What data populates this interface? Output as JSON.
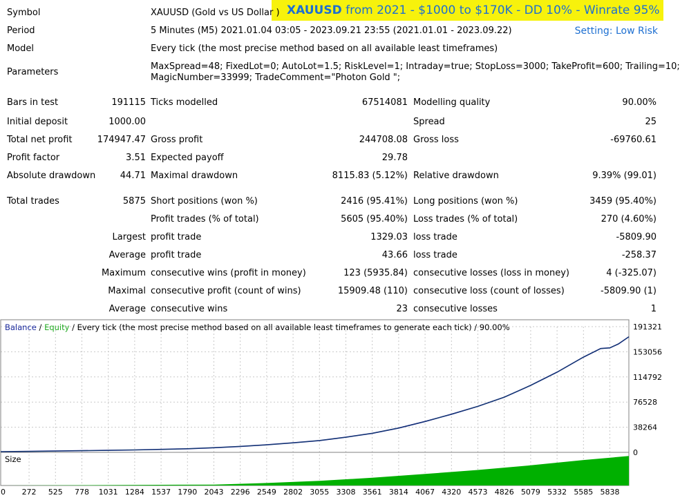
{
  "banner": {
    "symbol": "XAUUSD",
    "rest": " from 2021 - $1000 to $170K - DD 10% - Winrate 95%"
  },
  "setting_note": "Setting: Low Risk",
  "header_rows": {
    "symbol": {
      "label": "Symbol",
      "value": "XAUUSD (Gold vs US Dollar )"
    },
    "period": {
      "label": "Period",
      "value": "5 Minutes (M5) 2021.01.04 03:05 - 2023.09.21 23:55 (2021.01.01 - 2023.09.22)"
    },
    "model": {
      "label": "Model",
      "value": "Every tick (the most precise method based on all available least timeframes)"
    },
    "parameters": {
      "label": "Parameters",
      "line1": "MaxSpread=48; FixedLot=0; AutoLot=1.5; RiskLevel=1; Intraday=true; StopLoss=3000; TakeProfit=600; Trailing=10;",
      "line2": "MagicNumber=33999; TradeComment=\"Photon Gold \";"
    }
  },
  "stats": {
    "bars_in_test": {
      "label": "Bars in test",
      "value": "191115"
    },
    "ticks_modelled": {
      "label": "Ticks modelled",
      "value": "67514081"
    },
    "modelling_quality": {
      "label": "Modelling quality",
      "value": "90.00%"
    },
    "initial_deposit": {
      "label": "Initial deposit",
      "value": "1000.00"
    },
    "spread": {
      "label": "Spread",
      "value": "25"
    },
    "total_net_profit": {
      "label": "Total net profit",
      "value": "174947.47"
    },
    "gross_profit": {
      "label": "Gross profit",
      "value": "244708.08"
    },
    "gross_loss": {
      "label": "Gross loss",
      "value": "-69760.61"
    },
    "profit_factor": {
      "label": "Profit factor",
      "value": "3.51"
    },
    "expected_payoff": {
      "label": "Expected payoff",
      "value": "29.78"
    },
    "absolute_drawdown": {
      "label": "Absolute drawdown",
      "value": "44.71"
    },
    "maximal_drawdown": {
      "label": "Maximal drawdown",
      "value": "8115.83 (5.12%)"
    },
    "relative_drawdown": {
      "label": "Relative drawdown",
      "value": "9.39% (99.01)"
    },
    "total_trades": {
      "label": "Total trades",
      "value": "5875"
    },
    "short_positions": {
      "label": "Short positions (won %)",
      "value": "2416 (95.41%)"
    },
    "long_positions": {
      "label": "Long positions (won %)",
      "value": "3459 (95.40%)"
    },
    "profit_trades": {
      "label": "Profit trades (% of total)",
      "value": "5605 (95.40%)"
    },
    "loss_trades": {
      "label": "Loss trades (% of total)",
      "value": "270 (4.60%)"
    },
    "largest_label": "Largest",
    "largest_profit": {
      "label": "profit trade",
      "value": "1329.03"
    },
    "largest_loss": {
      "label": "loss trade",
      "value": "-5809.90"
    },
    "average_label": "Average",
    "average_profit": {
      "label": "profit trade",
      "value": "43.66"
    },
    "average_loss": {
      "label": "loss trade",
      "value": "-258.37"
    },
    "maximum_label": "Maximum",
    "max_consec_wins": {
      "label": "consecutive wins (profit in money)",
      "value": "123 (5935.84)"
    },
    "max_consec_losses": {
      "label": "consecutive losses (loss in money)",
      "value": "4 (-325.07)"
    },
    "maximal_label": "Maximal",
    "maximal_consec_profit": {
      "label": "consecutive profit (count of wins)",
      "value": "15909.48 (110)"
    },
    "maximal_consec_loss": {
      "label": "consecutive loss (count of losses)",
      "value": "-5809.90 (1)"
    },
    "average2_label": "Average",
    "avg_consec_wins": {
      "label": "consecutive wins",
      "value": "23"
    },
    "avg_consec_losses": {
      "label": "consecutive losses",
      "value": "1"
    }
  },
  "chart_data": {
    "type": "line",
    "legend": {
      "balance": "Balance",
      "sep1": " / ",
      "equity": "Equity",
      "rest": " / Every tick (the most precise method based on all available least timeframes to generate each tick) / 90.00%"
    },
    "colors": {
      "balance": "#0a0a8c",
      "equity": "#22aa22",
      "size": "#00b000",
      "grid": "#c8c8c8"
    },
    "y_ticks": [
      "191321",
      "153056",
      "114792",
      "76528",
      "38264",
      "0"
    ],
    "ylim": [
      0,
      191321
    ],
    "x_ticks": [
      "0",
      "272",
      "525",
      "778",
      "1031",
      "1284",
      "1537",
      "1790",
      "2043",
      "2296",
      "2549",
      "2802",
      "3055",
      "3308",
      "3561",
      "3814",
      "4067",
      "4320",
      "4573",
      "4826",
      "5079",
      "5332",
      "5585",
      "5838"
    ],
    "xlim": [
      0,
      6020
    ],
    "series": [
      {
        "name": "Balance",
        "x": [
          0,
          272,
          525,
          778,
          1031,
          1284,
          1537,
          1790,
          2043,
          2296,
          2549,
          2802,
          3055,
          3308,
          3561,
          3814,
          4067,
          4320,
          4573,
          4826,
          5079,
          5332,
          5585,
          5750,
          5838,
          5920,
          6020
        ],
        "y": [
          1000,
          1500,
          2000,
          2500,
          3000,
          3700,
          4500,
          5500,
          7000,
          9000,
          11500,
          14500,
          18000,
          23000,
          29000,
          37000,
          47000,
          58000,
          70000,
          84000,
          102000,
          122000,
          145000,
          158000,
          159000,
          165000,
          176000
        ]
      }
    ],
    "size_panel": {
      "label": "Size",
      "x": [
        0,
        2043,
        2549,
        3055,
        3561,
        4067,
        4573,
        5079,
        5585,
        6020
      ],
      "y": [
        0,
        0.03,
        0.08,
        0.15,
        0.25,
        0.37,
        0.5,
        0.65,
        0.82,
        0.95
      ]
    }
  }
}
